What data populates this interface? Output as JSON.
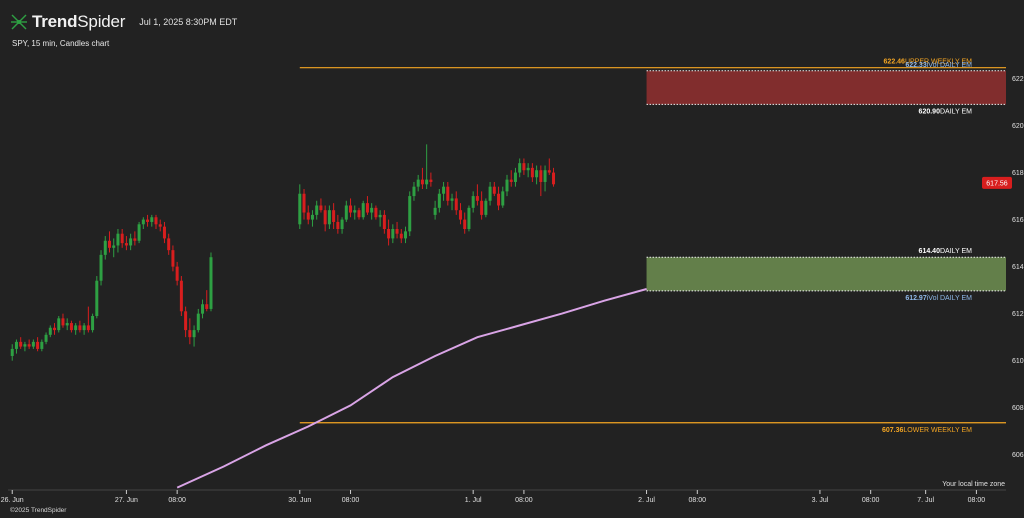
{
  "header": {
    "brand_bold": "Trend",
    "brand_light": "Spider",
    "datetime": "Jul 1, 2025 8:30PM EDT",
    "subtitle": "SPY, 15 min, Candles chart",
    "copyright": "©2025 TrendSpider",
    "timezone_label": "Your local time zone"
  },
  "colors": {
    "background": "#222222",
    "up": "#2ea043",
    "down": "#d81e1e",
    "moving_average": "#d9a4e6",
    "weekly_em": "#f5a623",
    "daily_em_bar": "#ffffff",
    "upper_zone_fill": "#8c2f2f",
    "lower_zone_fill": "#6a8a4f",
    "ivol_label": "#8fb8e8",
    "price_tag": "#d81e1e"
  },
  "chart_data": {
    "type": "candlestick",
    "title": "SPY, 15 min, Candles chart",
    "ylim": [
      604.5,
      623.0
    ],
    "y_ticks": [
      "622.00",
      "620.00",
      "618.00",
      "616.00",
      "614.00",
      "612.00",
      "610.00",
      "608.00",
      "606.00"
    ],
    "x_ticks": [
      {
        "label": "26. Jun",
        "t": 0
      },
      {
        "label": "27. Jun",
        "t": 27
      },
      {
        "label": "08:00",
        "t": 39
      },
      {
        "label": "30. Jun",
        "t": 68
      },
      {
        "label": "08:00",
        "t": 80
      },
      {
        "label": "1. Jul",
        "t": 109
      },
      {
        "label": "08:00",
        "t": 121
      },
      {
        "label": "2. Jul",
        "t": 150
      },
      {
        "label": "08:00",
        "t": 162
      },
      {
        "label": "3. Jul",
        "t": 191
      },
      {
        "label": "08:00",
        "t": 203
      },
      {
        "label": "7. Jul",
        "t": 216
      },
      {
        "label": "08:00",
        "t": 228
      }
    ],
    "x_range": [
      -1,
      235
    ],
    "last_price": "617.56",
    "levels": [
      {
        "name": "upper-weekly-em",
        "value": 622.46,
        "value_label": "622.46",
        "label": "UPPER WEEKLY EM",
        "start_t": 68,
        "style": "solid",
        "color_key": "weekly_em"
      },
      {
        "name": "upper-ivol-daily-em",
        "value": 622.33,
        "value_label": "622.33",
        "label": "iVol DAILY EM",
        "start_t": 150,
        "style": "dotted",
        "color_key": "ivol_label"
      },
      {
        "name": "upper-daily-em",
        "value": 620.9,
        "value_label": "620.90",
        "label": "DAILY EM",
        "start_t": 150,
        "style": "dotted",
        "color_key": "daily_em_bar"
      },
      {
        "name": "lower-daily-em",
        "value": 614.4,
        "value_label": "614.40",
        "label": "DAILY EM",
        "start_t": 150,
        "style": "dotted",
        "color_key": "daily_em_bar"
      },
      {
        "name": "lower-ivol-daily-em",
        "value": 612.97,
        "value_label": "612.97",
        "label": "iVol DAILY EM",
        "start_t": 150,
        "style": "dotted",
        "color_key": "ivol_label"
      },
      {
        "name": "lower-weekly-em",
        "value": 607.36,
        "value_label": "607.36",
        "label": "LOWER WEEKLY EM",
        "start_t": 68,
        "style": "solid",
        "color_key": "weekly_em"
      }
    ],
    "zones": [
      {
        "name": "upper-em-zone",
        "from": 620.9,
        "to": 622.33,
        "start_t": 150,
        "color_key": "upper_zone_fill"
      },
      {
        "name": "lower-em-zone",
        "from": 612.97,
        "to": 614.4,
        "start_t": 150,
        "color_key": "lower_zone_fill"
      }
    ],
    "moving_average": [
      {
        "t": 39,
        "v": 604.6
      },
      {
        "t": 50,
        "v": 605.5
      },
      {
        "t": 60,
        "v": 606.4
      },
      {
        "t": 70,
        "v": 607.2
      },
      {
        "t": 80,
        "v": 608.1
      },
      {
        "t": 90,
        "v": 609.3
      },
      {
        "t": 100,
        "v": 610.2
      },
      {
        "t": 110,
        "v": 611.0
      },
      {
        "t": 120,
        "v": 611.5
      },
      {
        "t": 130,
        "v": 612.0
      },
      {
        "t": 140,
        "v": 612.55
      },
      {
        "t": 150,
        "v": 613.05
      }
    ],
    "candles": [
      {
        "t": 0,
        "o": 610.2,
        "h": 610.7,
        "l": 610.0,
        "c": 610.5
      },
      {
        "t": 1,
        "o": 610.5,
        "h": 610.9,
        "l": 610.3,
        "c": 610.8
      },
      {
        "t": 2,
        "o": 610.8,
        "h": 611.0,
        "l": 610.5,
        "c": 610.6
      },
      {
        "t": 3,
        "o": 610.6,
        "h": 610.8,
        "l": 610.4,
        "c": 610.7
      },
      {
        "t": 4,
        "o": 610.7,
        "h": 610.9,
        "l": 610.5,
        "c": 610.6
      },
      {
        "t": 5,
        "o": 610.6,
        "h": 610.9,
        "l": 610.5,
        "c": 610.8
      },
      {
        "t": 6,
        "o": 610.8,
        "h": 611.0,
        "l": 610.4,
        "c": 610.5
      },
      {
        "t": 7,
        "o": 610.5,
        "h": 610.9,
        "l": 610.4,
        "c": 610.8
      },
      {
        "t": 8,
        "o": 610.8,
        "h": 611.2,
        "l": 610.7,
        "c": 611.1
      },
      {
        "t": 9,
        "o": 611.1,
        "h": 611.5,
        "l": 611.0,
        "c": 611.4
      },
      {
        "t": 10,
        "o": 611.4,
        "h": 611.6,
        "l": 611.1,
        "c": 611.3
      },
      {
        "t": 11,
        "o": 611.3,
        "h": 611.9,
        "l": 611.2,
        "c": 611.8
      },
      {
        "t": 12,
        "o": 611.8,
        "h": 612.0,
        "l": 611.4,
        "c": 611.5
      },
      {
        "t": 13,
        "o": 611.5,
        "h": 611.8,
        "l": 611.3,
        "c": 611.6
      },
      {
        "t": 14,
        "o": 611.6,
        "h": 611.7,
        "l": 611.2,
        "c": 611.3
      },
      {
        "t": 15,
        "o": 611.3,
        "h": 611.6,
        "l": 611.1,
        "c": 611.5
      },
      {
        "t": 16,
        "o": 611.5,
        "h": 611.7,
        "l": 611.2,
        "c": 611.3
      },
      {
        "t": 17,
        "o": 611.3,
        "h": 611.6,
        "l": 611.1,
        "c": 611.5
      },
      {
        "t": 18,
        "o": 611.5,
        "h": 612.3,
        "l": 611.2,
        "c": 611.3
      },
      {
        "t": 19,
        "o": 611.3,
        "h": 612.0,
        "l": 611.2,
        "c": 611.9
      },
      {
        "t": 20,
        "o": 611.9,
        "h": 613.6,
        "l": 611.8,
        "c": 613.4
      },
      {
        "t": 21,
        "o": 613.4,
        "h": 614.7,
        "l": 613.2,
        "c": 614.5
      },
      {
        "t": 22,
        "o": 614.5,
        "h": 615.3,
        "l": 614.3,
        "c": 615.1
      },
      {
        "t": 23,
        "o": 615.1,
        "h": 615.5,
        "l": 614.6,
        "c": 614.8
      },
      {
        "t": 24,
        "o": 614.8,
        "h": 615.2,
        "l": 614.4,
        "c": 614.9
      },
      {
        "t": 25,
        "o": 614.9,
        "h": 615.6,
        "l": 614.6,
        "c": 615.4
      },
      {
        "t": 26,
        "o": 615.4,
        "h": 615.6,
        "l": 614.8,
        "c": 615.0
      },
      {
        "t": 27,
        "o": 615.0,
        "h": 615.3,
        "l": 614.7,
        "c": 614.9
      },
      {
        "t": 28,
        "o": 614.9,
        "h": 615.4,
        "l": 614.7,
        "c": 615.2
      },
      {
        "t": 29,
        "o": 615.2,
        "h": 615.5,
        "l": 614.9,
        "c": 615.1
      },
      {
        "t": 30,
        "o": 615.1,
        "h": 615.9,
        "l": 615.0,
        "c": 615.8
      },
      {
        "t": 31,
        "o": 615.8,
        "h": 616.1,
        "l": 615.6,
        "c": 616.0
      },
      {
        "t": 32,
        "o": 616.0,
        "h": 616.2,
        "l": 615.7,
        "c": 615.9
      },
      {
        "t": 33,
        "o": 615.9,
        "h": 616.2,
        "l": 615.7,
        "c": 616.1
      },
      {
        "t": 34,
        "o": 616.1,
        "h": 616.2,
        "l": 615.6,
        "c": 615.8
      },
      {
        "t": 35,
        "o": 615.8,
        "h": 616.0,
        "l": 615.5,
        "c": 615.7
      },
      {
        "t": 36,
        "o": 615.7,
        "h": 615.9,
        "l": 615.0,
        "c": 615.2
      },
      {
        "t": 37,
        "o": 615.2,
        "h": 615.4,
        "l": 614.5,
        "c": 614.7
      },
      {
        "t": 38,
        "o": 614.7,
        "h": 614.9,
        "l": 613.8,
        "c": 614.0
      },
      {
        "t": 39,
        "o": 614.0,
        "h": 614.2,
        "l": 613.2,
        "c": 613.4
      },
      {
        "t": 40,
        "o": 613.4,
        "h": 613.6,
        "l": 611.9,
        "c": 612.1
      },
      {
        "t": 41,
        "o": 612.1,
        "h": 612.3,
        "l": 611.0,
        "c": 611.3
      },
      {
        "t": 42,
        "o": 611.3,
        "h": 611.8,
        "l": 610.7,
        "c": 611.0
      },
      {
        "t": 43,
        "o": 611.0,
        "h": 611.5,
        "l": 610.6,
        "c": 611.3
      },
      {
        "t": 44,
        "o": 611.3,
        "h": 612.2,
        "l": 611.2,
        "c": 612.0
      },
      {
        "t": 45,
        "o": 612.0,
        "h": 612.6,
        "l": 611.8,
        "c": 612.4
      },
      {
        "t": 46,
        "o": 612.4,
        "h": 613.0,
        "l": 612.1,
        "c": 612.2
      },
      {
        "t": 47,
        "o": 612.2,
        "h": 614.6,
        "l": 612.1,
        "c": 614.4
      },
      {
        "t": 68,
        "o": 615.8,
        "h": 617.5,
        "l": 615.6,
        "c": 617.1
      },
      {
        "t": 69,
        "o": 617.1,
        "h": 617.3,
        "l": 616.0,
        "c": 616.3
      },
      {
        "t": 70,
        "o": 616.3,
        "h": 616.6,
        "l": 615.8,
        "c": 616.0
      },
      {
        "t": 71,
        "o": 616.0,
        "h": 616.4,
        "l": 615.7,
        "c": 616.2
      },
      {
        "t": 72,
        "o": 616.2,
        "h": 616.8,
        "l": 616.0,
        "c": 616.6
      },
      {
        "t": 73,
        "o": 616.6,
        "h": 616.9,
        "l": 616.3,
        "c": 616.4
      },
      {
        "t": 74,
        "o": 616.4,
        "h": 616.6,
        "l": 615.5,
        "c": 615.8
      },
      {
        "t": 75,
        "o": 615.8,
        "h": 616.6,
        "l": 615.6,
        "c": 616.4
      },
      {
        "t": 76,
        "o": 616.4,
        "h": 616.7,
        "l": 615.6,
        "c": 615.9
      },
      {
        "t": 77,
        "o": 615.9,
        "h": 616.2,
        "l": 615.4,
        "c": 615.6
      },
      {
        "t": 78,
        "o": 615.6,
        "h": 616.1,
        "l": 615.4,
        "c": 616.0
      },
      {
        "t": 79,
        "o": 616.0,
        "h": 616.8,
        "l": 615.9,
        "c": 616.6
      },
      {
        "t": 80,
        "o": 616.6,
        "h": 616.9,
        "l": 616.1,
        "c": 616.3
      },
      {
        "t": 81,
        "o": 616.3,
        "h": 616.6,
        "l": 616.0,
        "c": 616.4
      },
      {
        "t": 82,
        "o": 616.4,
        "h": 616.5,
        "l": 616.0,
        "c": 616.1
      },
      {
        "t": 83,
        "o": 616.1,
        "h": 616.8,
        "l": 616.0,
        "c": 616.7
      },
      {
        "t": 84,
        "o": 616.7,
        "h": 617.0,
        "l": 616.2,
        "c": 616.3
      },
      {
        "t": 85,
        "o": 616.3,
        "h": 616.7,
        "l": 616.0,
        "c": 616.5
      },
      {
        "t": 86,
        "o": 616.5,
        "h": 616.6,
        "l": 616.0,
        "c": 616.1
      },
      {
        "t": 87,
        "o": 616.1,
        "h": 616.4,
        "l": 615.7,
        "c": 616.2
      },
      {
        "t": 88,
        "o": 616.2,
        "h": 616.4,
        "l": 615.4,
        "c": 615.6
      },
      {
        "t": 89,
        "o": 615.6,
        "h": 616.0,
        "l": 614.9,
        "c": 615.2
      },
      {
        "t": 90,
        "o": 615.2,
        "h": 615.8,
        "l": 615.0,
        "c": 615.6
      },
      {
        "t": 91,
        "o": 615.6,
        "h": 615.9,
        "l": 615.2,
        "c": 615.4
      },
      {
        "t": 92,
        "o": 615.4,
        "h": 615.6,
        "l": 615.0,
        "c": 615.2
      },
      {
        "t": 93,
        "o": 615.2,
        "h": 615.7,
        "l": 615.0,
        "c": 615.5
      },
      {
        "t": 94,
        "o": 615.5,
        "h": 617.2,
        "l": 615.3,
        "c": 617.0
      },
      {
        "t": 95,
        "o": 617.0,
        "h": 617.6,
        "l": 616.8,
        "c": 617.4
      },
      {
        "t": 96,
        "o": 617.4,
        "h": 617.9,
        "l": 617.2,
        "c": 617.7
      },
      {
        "t": 97,
        "o": 617.7,
        "h": 618.2,
        "l": 617.3,
        "c": 617.5
      },
      {
        "t": 98,
        "o": 617.5,
        "h": 619.2,
        "l": 617.3,
        "c": 617.7
      },
      {
        "t": 99,
        "o": 617.7,
        "h": 618.0,
        "l": 617.4,
        "c": 617.6
      },
      {
        "t": 100,
        "o": 616.2,
        "h": 616.8,
        "l": 616.0,
        "c": 616.5
      },
      {
        "t": 101,
        "o": 616.5,
        "h": 617.3,
        "l": 616.3,
        "c": 617.1
      },
      {
        "t": 102,
        "o": 617.1,
        "h": 617.6,
        "l": 616.8,
        "c": 617.4
      },
      {
        "t": 103,
        "o": 617.4,
        "h": 617.6,
        "l": 616.6,
        "c": 616.8
      },
      {
        "t": 104,
        "o": 616.8,
        "h": 617.1,
        "l": 616.4,
        "c": 616.9
      },
      {
        "t": 105,
        "o": 616.9,
        "h": 617.2,
        "l": 616.2,
        "c": 616.4
      },
      {
        "t": 106,
        "o": 616.4,
        "h": 616.7,
        "l": 615.8,
        "c": 616.0
      },
      {
        "t": 107,
        "o": 616.0,
        "h": 616.3,
        "l": 615.4,
        "c": 615.6
      },
      {
        "t": 108,
        "o": 615.6,
        "h": 616.6,
        "l": 615.5,
        "c": 616.5
      },
      {
        "t": 109,
        "o": 616.5,
        "h": 617.2,
        "l": 616.3,
        "c": 617.0
      },
      {
        "t": 110,
        "o": 617.0,
        "h": 617.5,
        "l": 616.6,
        "c": 616.8
      },
      {
        "t": 111,
        "o": 616.8,
        "h": 617.2,
        "l": 616.0,
        "c": 616.2
      },
      {
        "t": 112,
        "o": 616.2,
        "h": 616.9,
        "l": 616.1,
        "c": 616.8
      },
      {
        "t": 113,
        "o": 616.8,
        "h": 617.6,
        "l": 616.6,
        "c": 617.4
      },
      {
        "t": 114,
        "o": 617.4,
        "h": 617.6,
        "l": 617.0,
        "c": 617.1
      },
      {
        "t": 115,
        "o": 617.1,
        "h": 617.4,
        "l": 616.4,
        "c": 616.6
      },
      {
        "t": 116,
        "o": 616.6,
        "h": 617.4,
        "l": 616.5,
        "c": 617.2
      },
      {
        "t": 117,
        "o": 617.2,
        "h": 617.9,
        "l": 617.0,
        "c": 617.7
      },
      {
        "t": 118,
        "o": 617.7,
        "h": 618.1,
        "l": 617.4,
        "c": 617.6
      },
      {
        "t": 119,
        "o": 617.6,
        "h": 618.2,
        "l": 617.4,
        "c": 618.0
      },
      {
        "t": 120,
        "o": 618.0,
        "h": 618.6,
        "l": 617.8,
        "c": 618.4
      },
      {
        "t": 121,
        "o": 618.4,
        "h": 618.6,
        "l": 617.9,
        "c": 618.1
      },
      {
        "t": 122,
        "o": 618.1,
        "h": 618.4,
        "l": 617.8,
        "c": 618.2
      },
      {
        "t": 123,
        "o": 618.2,
        "h": 618.4,
        "l": 617.6,
        "c": 617.8
      },
      {
        "t": 124,
        "o": 617.8,
        "h": 618.3,
        "l": 617.5,
        "c": 618.1
      },
      {
        "t": 125,
        "o": 618.1,
        "h": 618.3,
        "l": 617.0,
        "c": 617.6
      },
      {
        "t": 126,
        "o": 617.6,
        "h": 618.3,
        "l": 617.2,
        "c": 618.1
      },
      {
        "t": 127,
        "o": 618.1,
        "h": 618.6,
        "l": 617.9,
        "c": 618.0
      },
      {
        "t": 128,
        "o": 618.0,
        "h": 618.2,
        "l": 617.4,
        "c": 617.5
      }
    ]
  }
}
